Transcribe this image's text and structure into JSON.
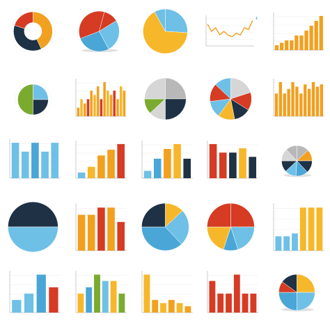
{
  "colors": {
    "orange": "#f2a01f",
    "amber": "#f7b72a",
    "red": "#d63b24",
    "blue": "#4aa6d6",
    "lightblue": "#6ec0e6",
    "navy": "#1f3144",
    "green": "#7aab2f",
    "gray": "#b8b8b8",
    "lightgray": "#d6d6d6",
    "axis": "#9a9a9a",
    "grid": "#e6e6e6"
  },
  "cells": [
    {
      "kind": "pie",
      "caption": "",
      "decos": [
        "",
        "",
        "",
        ""
      ],
      "donut": 0.45,
      "shadow": false,
      "slices": [
        {
          "v": 0.43,
          "c": "orange"
        },
        {
          "v": 0.37,
          "c": "navy"
        },
        {
          "v": 0.2,
          "c": "red"
        }
      ],
      "start": -90
    },
    {
      "kind": "pie",
      "caption": "",
      "decos": [],
      "donut": 0,
      "shadow": true,
      "slices": [
        {
          "v": 0.12,
          "c": "red"
        },
        {
          "v": 0.26,
          "c": "lightblue"
        },
        {
          "v": 0.27,
          "c": "blue"
        },
        {
          "v": 0.35,
          "c": "red"
        }
      ],
      "start": -75
    },
    {
      "kind": "pie",
      "caption": "",
      "decos": [],
      "donut": 0,
      "shadow": false,
      "slices": [
        {
          "v": 0.26,
          "c": "lightblue"
        },
        {
          "v": 0.66,
          "c": "amber"
        },
        {
          "v": 0.08,
          "c": "lightblue"
        }
      ],
      "start": -90
    },
    {
      "kind": "line",
      "caption": "",
      "color": "orange",
      "values": [
        6,
        4,
        5,
        3,
        4,
        3,
        2.5,
        3.5,
        3,
        5,
        4.5,
        7
      ]
    },
    {
      "kind": "bar",
      "caption": "",
      "colors": [
        "orange"
      ],
      "values": [
        1,
        1.5,
        2,
        2,
        3,
        3,
        4,
        5,
        6,
        7
      ]
    },
    {
      "kind": "pie",
      "caption": "",
      "decos": [
        "",
        "",
        "",
        ""
      ],
      "donut": 0,
      "shadow": false,
      "slices": [
        {
          "v": 0.25,
          "c": "lightblue"
        },
        {
          "v": 0.25,
          "c": "navy"
        },
        {
          "v": 0.5,
          "c": "green"
        }
      ],
      "start": -90
    },
    {
      "kind": "bar",
      "caption": "",
      "colors": [
        "orange",
        "amber",
        "orange",
        "red"
      ],
      "values": [
        1,
        2,
        1.5,
        2,
        3,
        2.5,
        3.5,
        2,
        4,
        3,
        2.5,
        3,
        2,
        3.5,
        3
      ]
    },
    {
      "kind": "pie",
      "caption": "",
      "decos": [],
      "donut": 0,
      "shadow": false,
      "slices": [
        {
          "v": 0.25,
          "c": "gray"
        },
        {
          "v": 0.25,
          "c": "navy"
        },
        {
          "v": 0.13,
          "c": "lightgray"
        },
        {
          "v": 0.12,
          "c": "green"
        },
        {
          "v": 0.25,
          "c": "lightgray"
        }
      ],
      "start": -90
    },
    {
      "kind": "pie",
      "caption": "",
      "decos": [],
      "donut": 0,
      "shadow": false,
      "slices": [
        {
          "v": 0.2,
          "c": "lightgray"
        },
        {
          "v": 0.14,
          "c": "red"
        },
        {
          "v": 0.13,
          "c": "navy"
        },
        {
          "v": 0.13,
          "c": "amber"
        },
        {
          "v": 0.13,
          "c": "lightblue"
        },
        {
          "v": 0.14,
          "c": "red"
        },
        {
          "v": 0.13,
          "c": "lightblue"
        }
      ],
      "start": -90
    },
    {
      "kind": "bar",
      "caption": "",
      "colors": [
        "orange"
      ],
      "values": [
        1,
        1.5,
        1,
        1.2,
        1.5,
        1.3,
        1,
        1.4,
        1.2,
        1.5,
        1.3,
        1.4
      ]
    },
    {
      "kind": "bar",
      "caption": "",
      "colors": [
        "lightblue",
        "lightblue",
        "blue",
        "lightblue",
        "lightblue"
      ],
      "values": [
        4,
        3,
        4,
        3,
        4
      ]
    },
    {
      "kind": "bar",
      "caption": "",
      "colors": [
        "lightblue",
        "amber",
        "orange",
        "orange",
        "red"
      ],
      "values": [
        1,
        2,
        4,
        5,
        6
      ]
    },
    {
      "kind": "bar",
      "caption": "",
      "colors": [
        "lightblue",
        "blue",
        "orange",
        "amber",
        "navy"
      ],
      "values": [
        1.5,
        4,
        6,
        7,
        4
      ]
    },
    {
      "kind": "bar",
      "caption": "",
      "colors": [
        "red",
        "red",
        "navy",
        "amber",
        "navy"
      ],
      "values": [
        8,
        6,
        6,
        7,
        5
      ]
    },
    {
      "kind": "pie",
      "caption": "",
      "decos": [],
      "donut": 0,
      "shadow": true,
      "slices": [
        {
          "v": 0.13,
          "c": "gray"
        },
        {
          "v": 0.12,
          "c": "orange"
        },
        {
          "v": 0.13,
          "c": "navy"
        },
        {
          "v": 0.13,
          "c": "blue"
        },
        {
          "v": 0.12,
          "c": "lightblue"
        },
        {
          "v": 0.12,
          "c": "navy"
        },
        {
          "v": 0.13,
          "c": "lightgray"
        },
        {
          "v": 0.12,
          "c": "gray"
        }
      ],
      "start": -90
    },
    {
      "kind": "pie",
      "caption": "",
      "decos": [],
      "donut": 0,
      "shadow": false,
      "slices": [
        {
          "v": 0.5,
          "c": "navy"
        },
        {
          "v": 0.5,
          "c": "lightblue"
        }
      ],
      "start": 180
    },
    {
      "kind": "bar",
      "caption": "",
      "colors": [
        "orange",
        "orange",
        "red",
        "orange",
        "red"
      ],
      "values": [
        5,
        5,
        6,
        6,
        4
      ]
    },
    {
      "kind": "pie",
      "caption": "",
      "decos": [],
      "donut": 0,
      "shadow": false,
      "slices": [
        {
          "v": 0.13,
          "c": "amber"
        },
        {
          "v": 0.25,
          "c": "lightblue"
        },
        {
          "v": 0.37,
          "c": "blue"
        },
        {
          "v": 0.25,
          "c": "navy"
        }
      ],
      "start": -90
    },
    {
      "kind": "pie",
      "caption": "",
      "decos": [],
      "donut": 0,
      "shadow": false,
      "slices": [
        {
          "v": 0.25,
          "c": "red"
        },
        {
          "v": 0.2,
          "c": "lightblue"
        },
        {
          "v": 0.1,
          "c": "blue"
        },
        {
          "v": 0.2,
          "c": "amber"
        },
        {
          "v": 0.25,
          "c": "red"
        }
      ],
      "start": -90
    },
    {
      "kind": "bar",
      "caption": "",
      "colors": [
        "lightblue",
        "lightblue",
        "lightblue",
        "amber",
        "amber",
        "amber"
      ],
      "values": [
        1,
        1,
        1.2,
        3,
        3,
        3
      ]
    },
    {
      "kind": "bar",
      "caption": "",
      "colors": [
        "lightblue",
        "lightblue",
        "blue",
        "red"
      ],
      "values": [
        2,
        3,
        6,
        4
      ]
    },
    {
      "kind": "bar",
      "caption": "",
      "colors": [
        "amber",
        "blue",
        "green",
        "lightblue",
        "amber",
        "green"
      ],
      "values": [
        3,
        4,
        6,
        5,
        5,
        3
      ]
    },
    {
      "kind": "bar",
      "caption": "",
      "colors": [
        "amber",
        "orange",
        "amber",
        "orange",
        "amber",
        "orange"
      ],
      "values": [
        6,
        2,
        1.5,
        2,
        1.5,
        1
      ]
    },
    {
      "kind": "bar",
      "caption": "",
      "colors": [
        "red",
        "red",
        "red",
        "red",
        "red",
        "red"
      ],
      "values": [
        5,
        3,
        3,
        6,
        3,
        3
      ]
    },
    {
      "kind": "pie",
      "caption": "",
      "decos": [],
      "donut": 0,
      "shadow": true,
      "slices": [
        {
          "v": 0.25,
          "c": "amber"
        },
        {
          "v": 0.25,
          "c": "lightblue"
        },
        {
          "v": 0.25,
          "c": "blue"
        },
        {
          "v": 0.1,
          "c": "red"
        },
        {
          "v": 0.15,
          "c": "navy"
        }
      ],
      "start": -90
    }
  ]
}
